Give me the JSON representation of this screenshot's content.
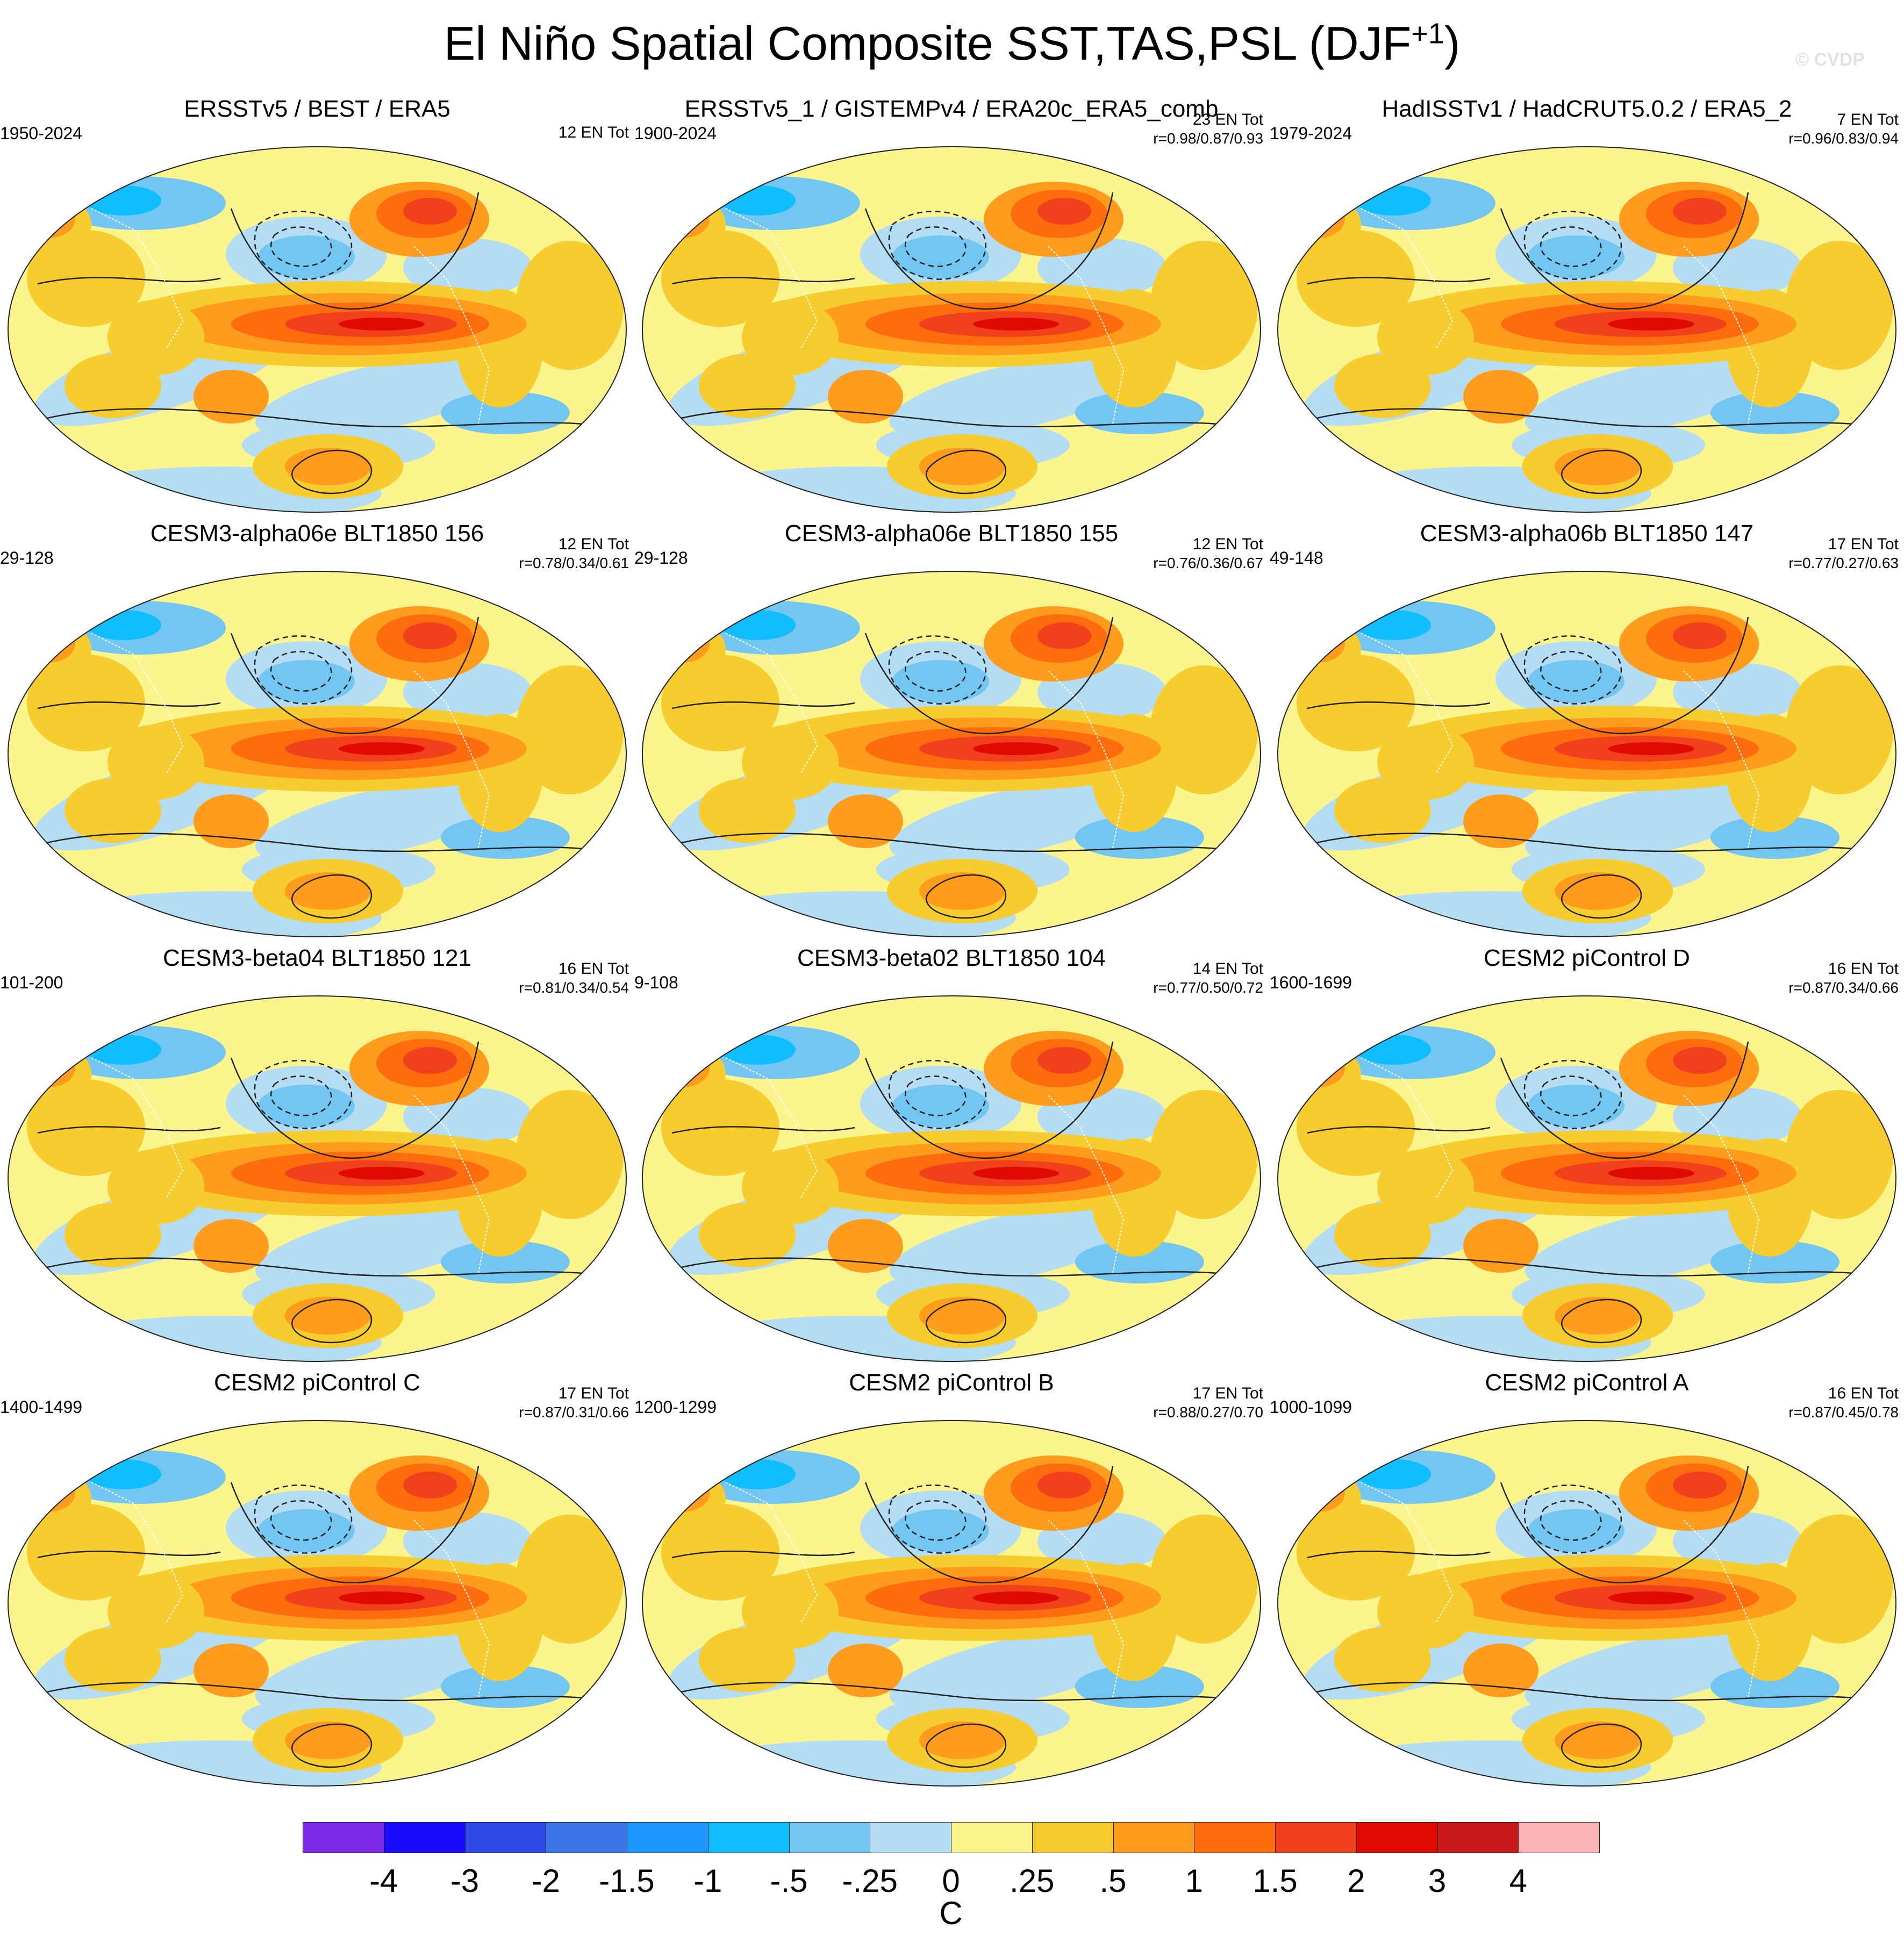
{
  "title": {
    "main": "El Niño Spatial Composite SST,TAS,PSL (DJF",
    "superscript": "+1",
    "close": ")"
  },
  "watermark": "© CVDP",
  "panels": [
    {
      "title": "ERSSTv5 / BEST / ERA5",
      "period": "1950-2024",
      "count": "12 EN Tot",
      "corr": ""
    },
    {
      "title": "ERSSTv5_1 / GISTEMPv4 / ERA20c_ERA5_comb",
      "period": "1900-2024",
      "count": "23 EN Tot",
      "corr": "r=0.98/0.87/0.93"
    },
    {
      "title": "HadISSTv1 / HadCRUT5.0.2 / ERA5_2",
      "period": "1979-2024",
      "count": "7 EN Tot",
      "corr": "r=0.96/0.83/0.94"
    },
    {
      "title": "CESM3-alpha06e BLT1850 156",
      "period": "29-128",
      "count": "12 EN Tot",
      "corr": "r=0.78/0.34/0.61"
    },
    {
      "title": "CESM3-alpha06e BLT1850 155",
      "period": "29-128",
      "count": "12 EN Tot",
      "corr": "r=0.76/0.36/0.67"
    },
    {
      "title": "CESM3-alpha06b BLT1850 147",
      "period": "49-148",
      "count": "17 EN Tot",
      "corr": "r=0.77/0.27/0.63"
    },
    {
      "title": "CESM3-beta04 BLT1850 121",
      "period": "101-200",
      "count": "16 EN Tot",
      "corr": "r=0.81/0.34/0.54"
    },
    {
      "title": "CESM3-beta02 BLT1850 104",
      "period": "9-108",
      "count": "14 EN Tot",
      "corr": "r=0.77/0.50/0.72"
    },
    {
      "title": "CESM2 piControl D",
      "period": "1600-1699",
      "count": "16 EN Tot",
      "corr": "r=0.87/0.34/0.66"
    },
    {
      "title": "CESM2 piControl C",
      "period": "1400-1499",
      "count": "17 EN Tot",
      "corr": "r=0.87/0.31/0.66"
    },
    {
      "title": "CESM2 piControl B",
      "period": "1200-1299",
      "count": "17 EN Tot",
      "corr": "r=0.88/0.27/0.70"
    },
    {
      "title": "CESM2 piControl A",
      "period": "1000-1099",
      "count": "16 EN Tot",
      "corr": "r=0.87/0.45/0.78"
    }
  ],
  "colorbar": {
    "colors": [
      "#7d2ae8",
      "#1a0dff",
      "#2e4ae8",
      "#3b76e8",
      "#1e96ff",
      "#10bdff",
      "#74c6f2",
      "#b4dcf2",
      "#fcf58e",
      "#f7cc2e",
      "#ff9c1e",
      "#ff6c0e",
      "#f0401c",
      "#e00a00",
      "#c81818",
      "#ffb4b8"
    ],
    "labels": [
      "-4",
      "-3",
      "-2",
      "-1.5",
      "-1",
      "-.5",
      "-.25",
      "0",
      ".25",
      ".5",
      "1",
      "1.5",
      "2",
      "3",
      "4"
    ],
    "unit": "C"
  }
}
